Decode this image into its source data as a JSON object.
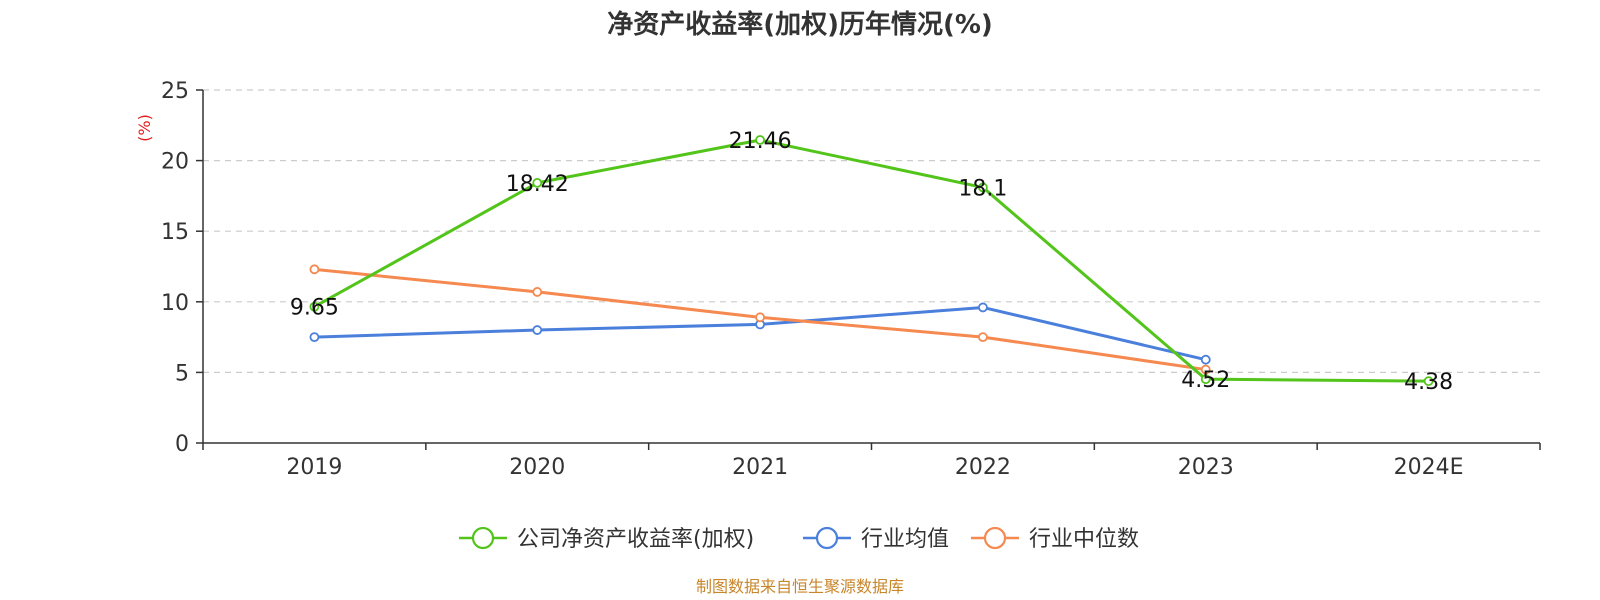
{
  "chart_data": {
    "type": "line",
    "title": "净资产收益率(加权)历年情况(%)",
    "ylabel": "(%)",
    "xlabel": "",
    "categories": [
      "2019",
      "2020",
      "2021",
      "2022",
      "2023",
      "2024E"
    ],
    "ylim": [
      0,
      25
    ],
    "yticks": [
      0,
      5,
      10,
      15,
      20,
      25
    ],
    "grid": true,
    "legend_position": "bottom-center",
    "series": [
      {
        "name": "公司净资产收益率(加权)",
        "color": "#52c41a",
        "values": [
          9.65,
          18.42,
          21.46,
          18.1,
          4.52,
          4.38
        ],
        "labels": [
          "9.65",
          "18.42",
          "21.46",
          "18.1",
          "4.52",
          "4.38"
        ]
      },
      {
        "name": "行业均值",
        "color": "#4a7fdc",
        "values": [
          7.5,
          8.0,
          8.4,
          9.6,
          5.9,
          null
        ]
      },
      {
        "name": "行业中位数",
        "color": "#f5894f",
        "values": [
          12.3,
          10.7,
          8.9,
          7.5,
          5.2,
          null
        ]
      }
    ],
    "ylabel_color": "#e02020",
    "source": "制图数据来自恒生聚源数据库",
    "source_color": "#c8862a"
  }
}
